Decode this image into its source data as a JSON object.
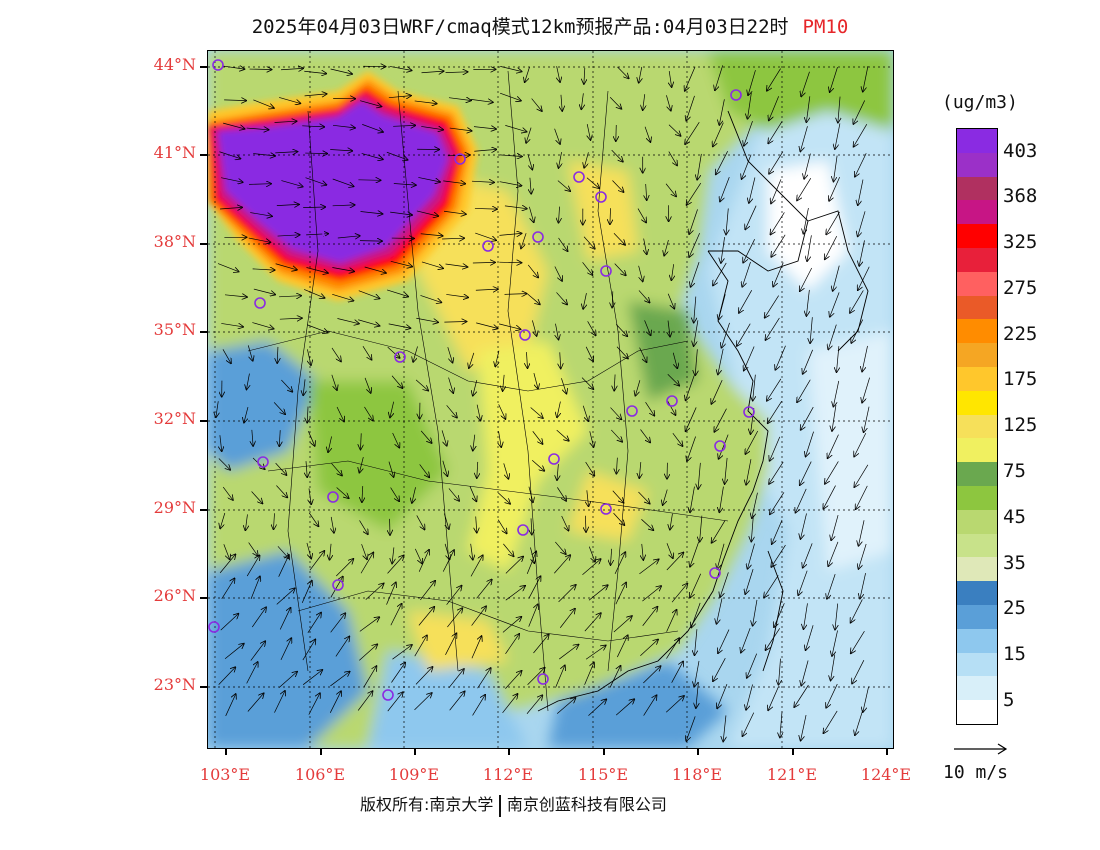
{
  "title": {
    "main": "2025年04月03日WRF/cmaq模式12km预报产品:04月03日22时",
    "pollutant": "PM10",
    "pollutant_color": "#e6262a"
  },
  "axes": {
    "lat_labels": [
      "44°N",
      "41°N",
      "38°N",
      "35°N",
      "32°N",
      "29°N",
      "26°N",
      "23°N"
    ],
    "lon_labels": [
      "103°E",
      "106°E",
      "109°E",
      "112°E",
      "115°E",
      "118°E",
      "121°E",
      "124°E"
    ],
    "label_color": "#e43b3b"
  },
  "colorbar": {
    "unit": "(ug/m3)",
    "labels": [
      "403",
      "368",
      "325",
      "275",
      "225",
      "175",
      "125",
      "75",
      "45",
      "35",
      "25",
      "15",
      "5"
    ],
    "colors": [
      "#8a2be2",
      "#9b30c8",
      "#b03060",
      "#c71585",
      "#ff0000",
      "#e8203a",
      "#ff6060",
      "#ea5a28",
      "#ff8c00",
      "#f5a623",
      "#ffc72c",
      "#ffe600",
      "#f6e05a",
      "#f0f060",
      "#6aa84f",
      "#8dc63f",
      "#b9d870",
      "#c8e28a",
      "#dfe8b8",
      "#3a7fc0",
      "#5a9fd8",
      "#8ec8ee",
      "#b6dff5",
      "#d8eff9",
      "#ffffff"
    ]
  },
  "reference_vector": {
    "label": "10 m/s"
  },
  "footer": {
    "copyright_left": "版权所有:南京大学",
    "copyright_right": "南京创蓝科技有限公司"
  },
  "city_marker_color": "#8a2be2"
}
